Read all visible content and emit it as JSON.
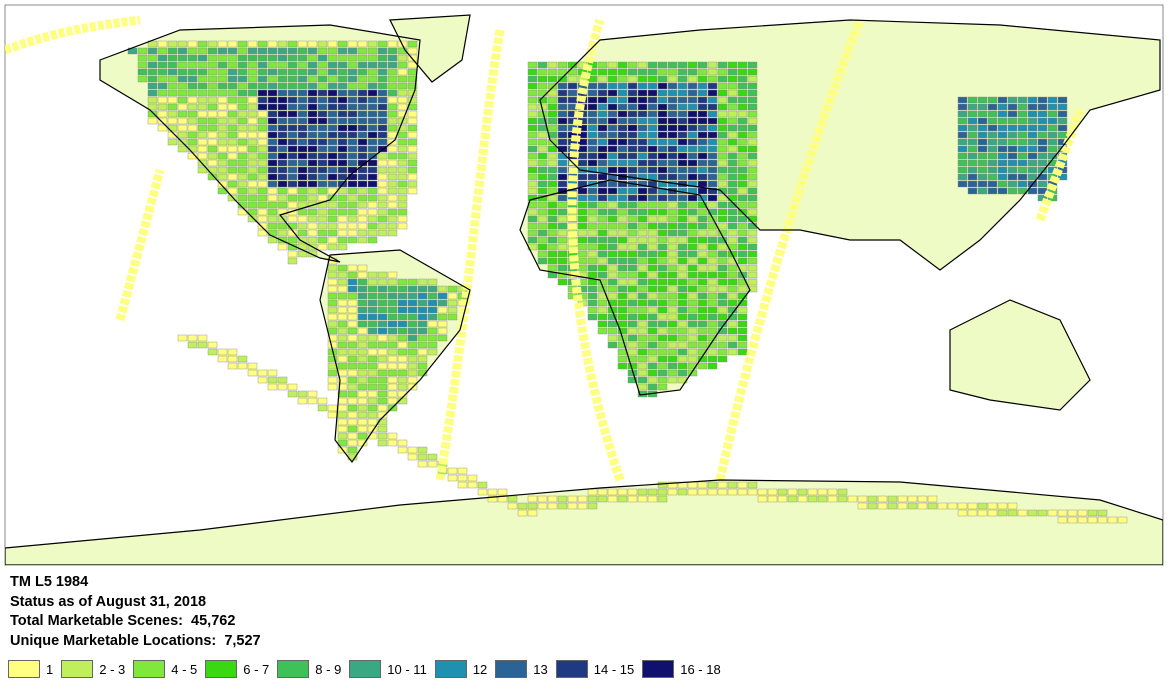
{
  "info": {
    "title": "TM L5 1984",
    "status": "Status as of August 31, 2018",
    "total_scenes": "Total Marketable Scenes:  45,762",
    "unique_locations": "Unique Marketable Locations:  7,527"
  },
  "legend": [
    {
      "label": "1",
      "color": "#ffff80"
    },
    {
      "label": "2 - 3",
      "color": "#bff05c"
    },
    {
      "label": "4 - 5",
      "color": "#80e83c"
    },
    {
      "label": "6 - 7",
      "color": "#38d912"
    },
    {
      "label": "8 - 9",
      "color": "#40c058"
    },
    {
      "label": "10 - 11",
      "color": "#3aa882"
    },
    {
      "label": "12",
      "color": "#1f90b0"
    },
    {
      "label": "13",
      "color": "#2a6496"
    },
    {
      "label": "14 - 15",
      "color": "#1f3a82"
    },
    {
      "label": "16 - 18",
      "color": "#10106e"
    }
  ],
  "map": {
    "land_color": "#eefbc4",
    "outline_color": "#000000"
  }
}
